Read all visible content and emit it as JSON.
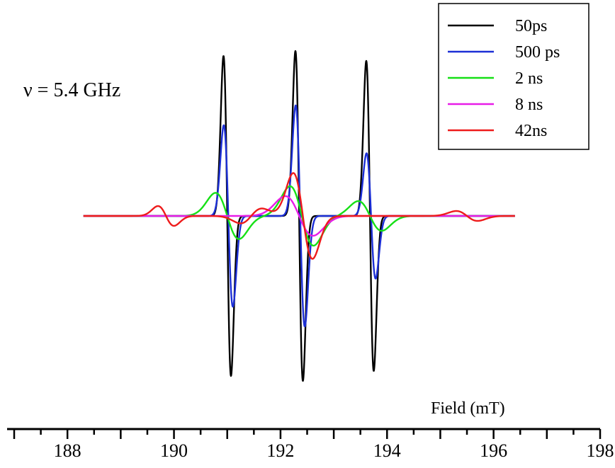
{
  "chart_data": {
    "type": "line",
    "title": "",
    "xlabel": "Field (mT)",
    "ylabel": "",
    "xlim": [
      187.0,
      198.0
    ],
    "ylim": [
      -1.1,
      1.0
    ],
    "x_ticks": [
      188,
      190,
      192,
      194,
      196,
      198
    ],
    "grid": false,
    "legend_position": "top-right",
    "annotation": "ν = 5.4 GHz",
    "x_range_plotted": [
      188.3,
      196.4
    ],
    "series": [
      {
        "name": "50ps",
        "color": "#000000",
        "lines": [
          {
            "center": 191.0,
            "amplitude": 0.97,
            "width": 0.07
          },
          {
            "center": 192.35,
            "amplitude": 1.0,
            "width": 0.07
          },
          {
            "center": 193.68,
            "amplitude": 0.94,
            "width": 0.07
          }
        ]
      },
      {
        "name": "500 ps",
        "color": "#1c2fd6",
        "lines": [
          {
            "center": 191.02,
            "amplitude": 0.55,
            "width": 0.085
          },
          {
            "center": 192.37,
            "amplitude": 0.67,
            "width": 0.085
          },
          {
            "center": 193.7,
            "amplitude": 0.38,
            "width": 0.085
          }
        ]
      },
      {
        "name": "2 ns",
        "color": "#16e016",
        "lines": [
          {
            "center": 191.0,
            "amplitude": 0.14,
            "width": 0.22
          },
          {
            "center": 192.4,
            "amplitude": 0.18,
            "width": 0.22
          },
          {
            "center": 193.68,
            "amplitude": 0.09,
            "width": 0.22
          }
        ]
      },
      {
        "name": "8 ns",
        "color": "#e81ce8",
        "lines": [
          {
            "center": 192.35,
            "amplitude": 0.12,
            "width": 0.26
          }
        ]
      },
      {
        "name": "42ns",
        "color": "#ee1b1b",
        "lines": [
          {
            "center": 189.85,
            "amplitude": 0.06,
            "width": 0.15
          },
          {
            "center": 191.45,
            "amplitude": -0.045,
            "width": 0.2
          },
          {
            "center": 192.42,
            "amplitude": 0.26,
            "width": 0.18
          },
          {
            "center": 195.5,
            "amplitude": 0.03,
            "width": 0.2
          }
        ]
      }
    ]
  }
}
